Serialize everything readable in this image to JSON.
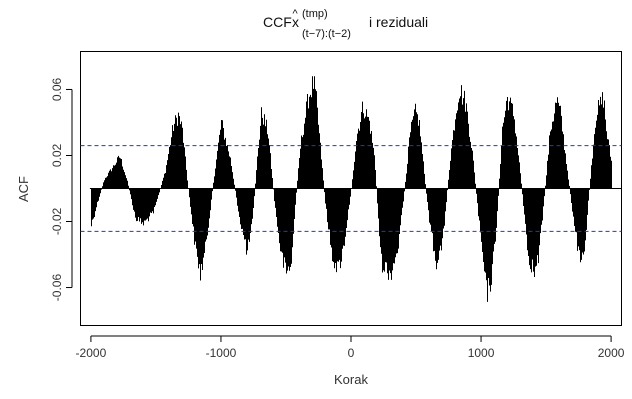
{
  "chart_data": {
    "type": "bar",
    "title": {
      "prefix": "CCF",
      "symbol": "x",
      "hat": "^",
      "superscript": "(tmp)",
      "subscript": "(t−7):(t−2)",
      "suffix": "i reziduali"
    },
    "xlabel": "Korak",
    "ylabel": "ACF",
    "xlim": [
      -2080,
      2080
    ],
    "ylim": [
      -0.083,
      0.083
    ],
    "xticks": [
      -2000,
      -1000,
      0,
      1000,
      2000
    ],
    "xtick_labels": [
      "-2000",
      "-1000",
      "0",
      "1000",
      "2000"
    ],
    "yticks": [
      -0.06,
      -0.02,
      0.02,
      0.06
    ],
    "ytick_labels": [
      "-0.06",
      "-0.02",
      "0.02",
      "0.06"
    ],
    "confidence_band": [
      0.026,
      -0.026
    ],
    "confidence_color": "#2233dd",
    "bar_color": "#000000",
    "lag_range": [
      -2000,
      2000
    ],
    "envelope": {
      "x": [
        -2000,
        -1960,
        -1900,
        -1830,
        -1780,
        -1720,
        -1660,
        -1600,
        -1520,
        -1430,
        -1370,
        -1330,
        -1300,
        -1260,
        -1200,
        -1160,
        -1120,
        -1060,
        -1000,
        -930,
        -860,
        -800,
        -760,
        -720,
        -690,
        -640,
        -590,
        -540,
        -500,
        -460,
        -430,
        -390,
        -330,
        -290,
        -270,
        -240,
        -200,
        -150,
        -100,
        -60,
        0,
        40,
        90,
        140,
        180,
        200,
        230,
        300,
        360,
        410,
        450,
        490,
        520,
        550,
        590,
        650,
        700,
        760,
        800,
        830,
        880,
        930,
        990,
        1040,
        1080,
        1120,
        1160,
        1200,
        1250,
        1300,
        1360,
        1410,
        1440,
        1480,
        1530,
        1580,
        1610,
        1650,
        1700,
        1760,
        1790,
        1840,
        1880,
        1940,
        1960,
        2000
      ],
      "y": [
        -0.025,
        -0.012,
        0.006,
        0.015,
        0.022,
        0.004,
        -0.02,
        -0.024,
        -0.016,
        0.012,
        0.042,
        0.05,
        0.04,
        0.005,
        -0.04,
        -0.058,
        -0.04,
        0.005,
        0.045,
        0.02,
        -0.02,
        -0.044,
        -0.022,
        0.024,
        0.052,
        0.038,
        -0.01,
        -0.045,
        -0.058,
        -0.05,
        -0.01,
        0.03,
        0.062,
        0.072,
        0.06,
        0.03,
        -0.01,
        -0.045,
        -0.055,
        -0.04,
        0.0,
        0.035,
        0.056,
        0.045,
        0.02,
        -0.01,
        -0.05,
        -0.058,
        -0.04,
        0.0,
        0.036,
        0.052,
        0.046,
        0.02,
        -0.015,
        -0.05,
        -0.038,
        0.02,
        0.05,
        0.068,
        0.058,
        0.025,
        -0.03,
        -0.072,
        -0.06,
        -0.02,
        0.04,
        0.062,
        0.05,
        0.01,
        -0.045,
        -0.058,
        -0.046,
        -0.01,
        0.04,
        0.06,
        0.05,
        0.02,
        -0.015,
        -0.052,
        -0.045,
        0.01,
        0.05,
        0.062,
        0.04,
        0.018
      ]
    }
  }
}
